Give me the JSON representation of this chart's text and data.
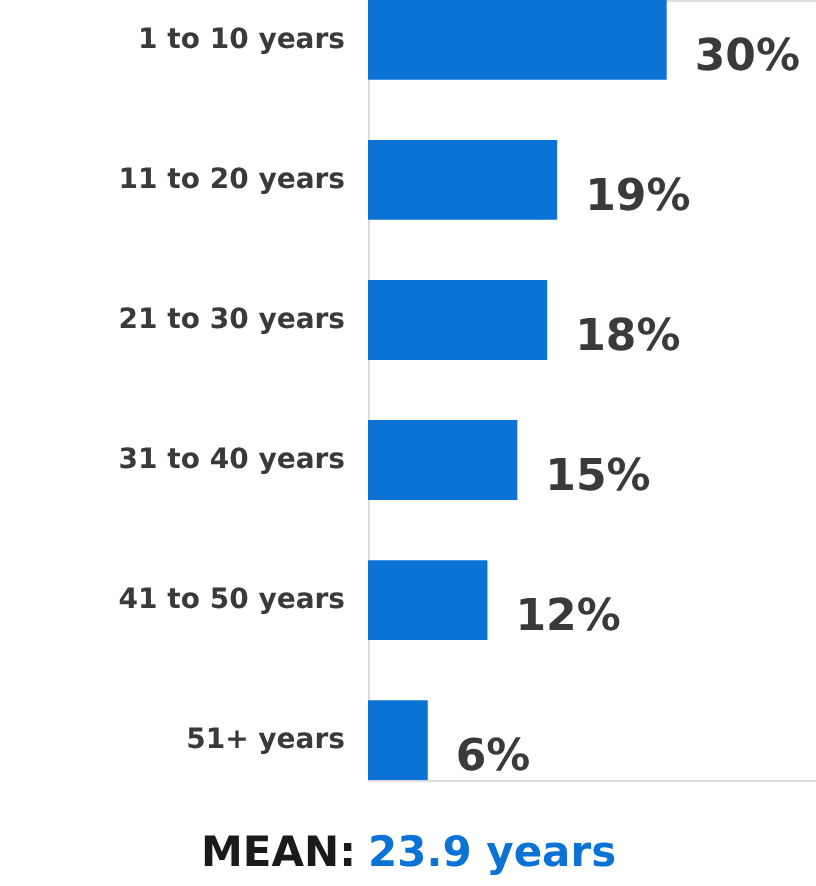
{
  "chart_data": {
    "type": "bar",
    "orientation": "horizontal",
    "categories": [
      "1 to 10 years",
      "11 to 20 years",
      "21 to 30 years",
      "31 to 40 years",
      "41 to 50 years",
      "51+ years"
    ],
    "values": [
      30,
      19,
      18,
      15,
      12,
      6
    ],
    "value_labels": [
      "30%",
      "19%",
      "18%",
      "15%",
      "12%",
      "6%"
    ],
    "color": "#0b72d6",
    "annotations": [
      "MEAN:",
      "23.9 years"
    ]
  }
}
